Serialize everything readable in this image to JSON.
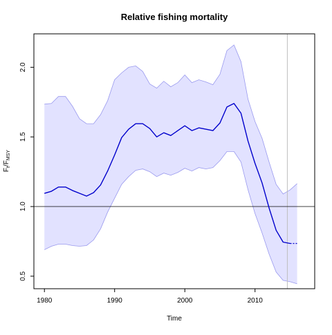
{
  "chart_data": {
    "type": "line",
    "title": "Relative fishing mortality",
    "xlabel": "Time",
    "ylabel": {
      "base": "F",
      "base_sub": "t",
      "sep": "/F",
      "denom_sub": "MSY"
    },
    "xlim": [
      1978.5,
      2018.5
    ],
    "ylim": [
      0.41,
      2.24
    ],
    "x_ticks": [
      1980,
      1990,
      2000,
      2010
    ],
    "y_ticks": [
      0.5,
      1.0,
      1.5,
      2.0
    ],
    "x_tick_labels": [
      "1980",
      "1990",
      "2000",
      "2010"
    ],
    "y_tick_labels": [
      "0.5",
      "1.0",
      "1.5",
      "2.0"
    ],
    "reference_line": {
      "y": 1.0,
      "color": "#000000"
    },
    "vertical_marker": {
      "x": 2014.6,
      "color": "#bebebe"
    },
    "grid": false,
    "legend": "none",
    "colors": {
      "line": "#0000cc",
      "band_fill": "#e2e2ff",
      "band_edge": "#9999ee"
    },
    "series": [
      {
        "role": "estimate",
        "x": [
          1980,
          1981,
          1982,
          1983,
          1984,
          1985,
          1986,
          1987,
          1988,
          1989,
          1990,
          1991,
          1992,
          1993,
          1994,
          1995,
          1996,
          1997,
          1998,
          1999,
          2000,
          2001,
          2002,
          2003,
          2004,
          2005,
          2006,
          2007,
          2008,
          2009,
          2010,
          2011,
          2012,
          2013,
          2014,
          2015
        ],
        "y": [
          1.095,
          1.11,
          1.14,
          1.14,
          1.115,
          1.095,
          1.075,
          1.1,
          1.155,
          1.255,
          1.37,
          1.495,
          1.555,
          1.595,
          1.595,
          1.56,
          1.5,
          1.53,
          1.51,
          1.545,
          1.58,
          1.545,
          1.565,
          1.555,
          1.545,
          1.6,
          1.715,
          1.74,
          1.67,
          1.47,
          1.31,
          1.17,
          0.99,
          0.83,
          0.745,
          0.735
        ]
      },
      {
        "role": "projection",
        "x": [
          2015,
          2016
        ],
        "y": [
          0.735,
          0.735
        ]
      },
      {
        "role": "upper_ci",
        "x": [
          1980,
          1981,
          1982,
          1983,
          1984,
          1985,
          1986,
          1987,
          1988,
          1989,
          1990,
          1991,
          1992,
          1993,
          1994,
          1995,
          1996,
          1997,
          1998,
          1999,
          2000,
          2001,
          2002,
          2003,
          2004,
          2005,
          2006,
          2007,
          2008,
          2009,
          2010,
          2011,
          2012,
          2013,
          2014,
          2015,
          2016
        ],
        "y": [
          1.735,
          1.74,
          1.79,
          1.79,
          1.72,
          1.63,
          1.595,
          1.595,
          1.66,
          1.76,
          1.91,
          1.96,
          2.0,
          2.01,
          1.97,
          1.88,
          1.85,
          1.9,
          1.86,
          1.89,
          1.945,
          1.89,
          1.91,
          1.895,
          1.875,
          1.95,
          2.12,
          2.16,
          2.04,
          1.77,
          1.61,
          1.49,
          1.32,
          1.16,
          1.09,
          1.12,
          1.165
        ]
      },
      {
        "role": "lower_ci",
        "x": [
          1980,
          1981,
          1982,
          1983,
          1984,
          1985,
          1986,
          1987,
          1988,
          1989,
          1990,
          1991,
          1992,
          1993,
          1994,
          1995,
          1996,
          1997,
          1998,
          1999,
          2000,
          2001,
          2002,
          2003,
          2004,
          2005,
          2006,
          2007,
          2008,
          2009,
          2010,
          2011,
          2012,
          2013,
          2014,
          2015,
          2016
        ],
        "y": [
          0.69,
          0.715,
          0.73,
          0.73,
          0.72,
          0.715,
          0.72,
          0.76,
          0.84,
          0.96,
          1.06,
          1.16,
          1.215,
          1.26,
          1.27,
          1.25,
          1.215,
          1.24,
          1.225,
          1.245,
          1.275,
          1.255,
          1.28,
          1.27,
          1.28,
          1.33,
          1.395,
          1.395,
          1.32,
          1.12,
          0.95,
          0.81,
          0.66,
          0.53,
          0.47,
          0.46,
          0.445
        ]
      }
    ]
  }
}
